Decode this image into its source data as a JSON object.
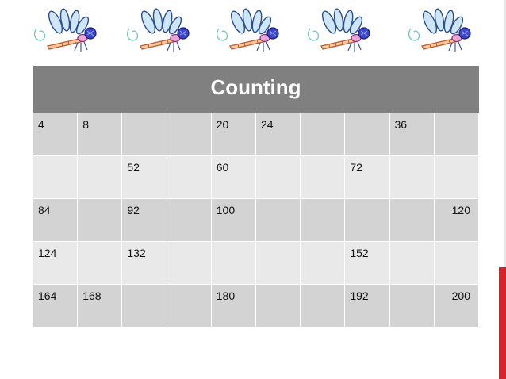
{
  "table": {
    "title": "Counting",
    "rows": [
      [
        "4",
        "8",
        "",
        "",
        "20",
        "24",
        "",
        "",
        "36",
        ""
      ],
      [
        "",
        "",
        "52",
        "",
        "60",
        "",
        "",
        "72",
        "",
        ""
      ],
      [
        "84",
        "",
        "92",
        "",
        "100",
        "",
        "",
        "",
        "",
        "120"
      ],
      [
        "124",
        "",
        "132",
        "",
        "",
        "",
        "",
        "152",
        "",
        ""
      ],
      [
        "164",
        "168",
        "",
        "",
        "180",
        "",
        "",
        "192",
        "",
        "200"
      ]
    ]
  },
  "decorations": {
    "icon": "dragonfly-icon",
    "count": 5,
    "accent_color": "#d6222b",
    "header_color": "#808080"
  }
}
